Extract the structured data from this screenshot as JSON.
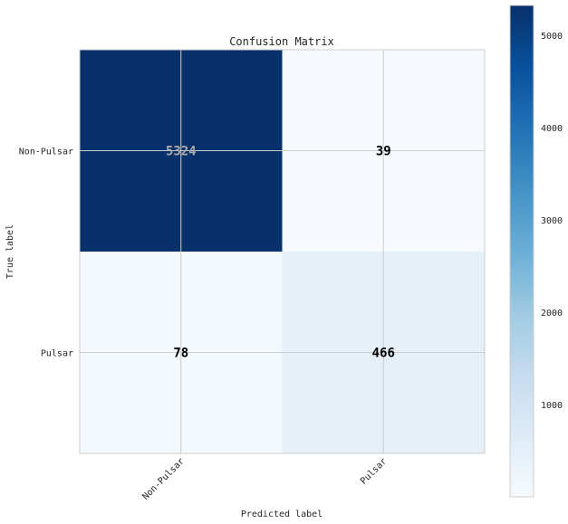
{
  "chart_data": {
    "type": "heatmap",
    "title": "Confusion Matrix",
    "xlabel": "Predicted label",
    "ylabel": "True label",
    "x_categories": [
      "Non-Pulsar",
      "Pulsar"
    ],
    "y_categories": [
      "Non-Pulsar",
      "Pulsar"
    ],
    "values": [
      [
        5324,
        39
      ],
      [
        78,
        466
      ]
    ],
    "colormap": "Blues",
    "colorbar": {
      "min": 0,
      "max": 5324,
      "ticks": [
        1000,
        2000,
        3000,
        4000,
        5000
      ]
    },
    "grid": true,
    "colors": {
      "low": "#f7fbff",
      "high": "#08306b",
      "text_on_dark": "#aaaaaa",
      "text_on_light": "#000000",
      "grid": "#cccccc"
    }
  }
}
